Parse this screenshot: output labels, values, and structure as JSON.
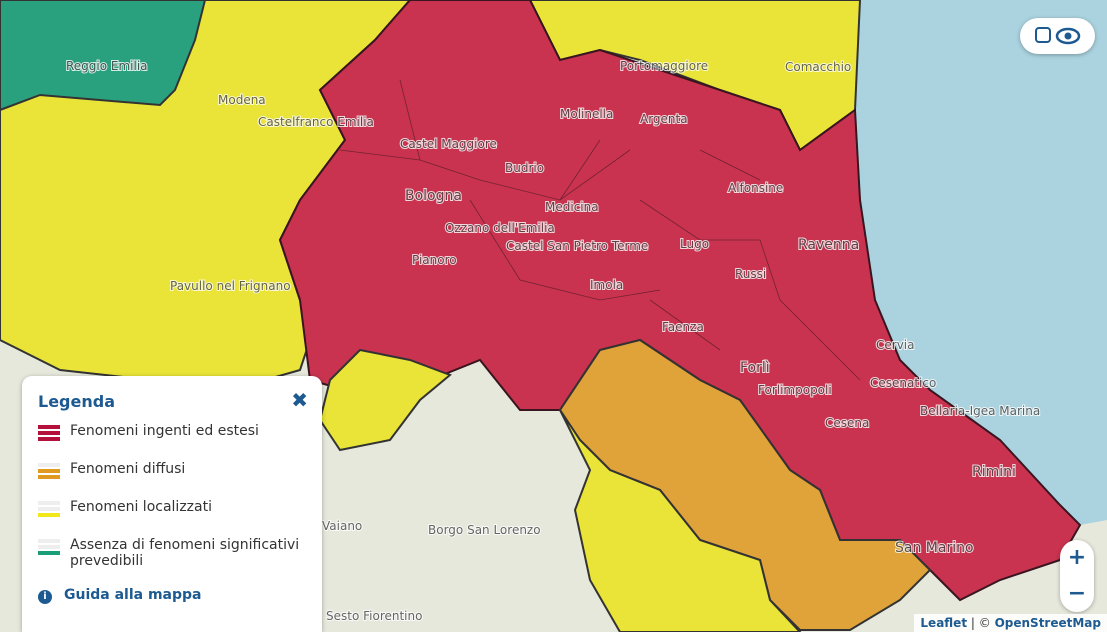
{
  "legend": {
    "title": "Legenda",
    "items": [
      "Fenomeni ingenti ed estesi",
      "Fenomeni diffusi",
      "Fenomeni localizzati",
      "Assenza di fenomeni significativi prevedibili"
    ],
    "guide": "Guida alla mappa"
  },
  "places": [
    "Reggio Emilia",
    "Modena",
    "Castelfranco Emilia",
    "Castel Maggiore",
    "Bologna",
    "Budrio",
    "Molinella",
    "Argenta",
    "Portomaggiore",
    "Comacchio",
    "Medicina",
    "Alfonsine",
    "Ravenna",
    "Ozzano dell'Emilia",
    "Castel San Pietro Terme",
    "Pianoro",
    "Lugo",
    "Russi",
    "Imola",
    "Faenza",
    "Forlì",
    "Forlimpopoli",
    "Cesena",
    "Cervia",
    "Cesenatico",
    "Bellaria-Igea Marina",
    "Rimini",
    "San Marino",
    "Pavullo nel Frignano",
    "Vaiano",
    "Borgo San Lorenzo",
    "Sesto Fiorentino"
  ],
  "zoom": {
    "in": "+",
    "out": "−"
  },
  "attribution": {
    "leaflet": "Leaflet",
    "separator": "| ©",
    "osm": "OpenStreetMap"
  }
}
